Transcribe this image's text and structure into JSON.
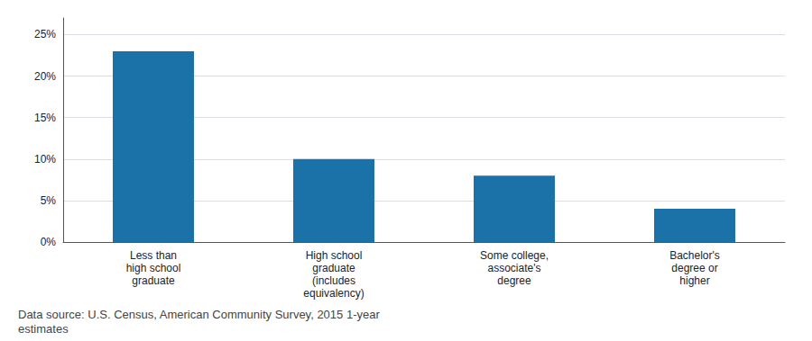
{
  "chart_data": {
    "type": "bar",
    "categories": [
      "Less than\nhigh school\ngraduate",
      "High school\ngraduate\n(includes\nequivalency)",
      "Some college,\nassociate's\ndegree",
      "Bachelor's\ndegree or\nhigher"
    ],
    "values": [
      0.23,
      0.1,
      0.08,
      0.04
    ],
    "color": "#1a72a8",
    "ylim": [
      0,
      0.27
    ],
    "yticks": [
      {
        "value": 0.0,
        "label": "0%"
      },
      {
        "value": 0.05,
        "label": "5%"
      },
      {
        "value": 0.1,
        "label": "10%"
      },
      {
        "value": 0.15,
        "label": "15%"
      },
      {
        "value": 0.2,
        "label": "20%"
      },
      {
        "value": 0.25,
        "label": "25%"
      }
    ],
    "grid": true,
    "annotation": "Data source: U.S. Census, American Community Survey, 2015 1-year\nestimates"
  }
}
